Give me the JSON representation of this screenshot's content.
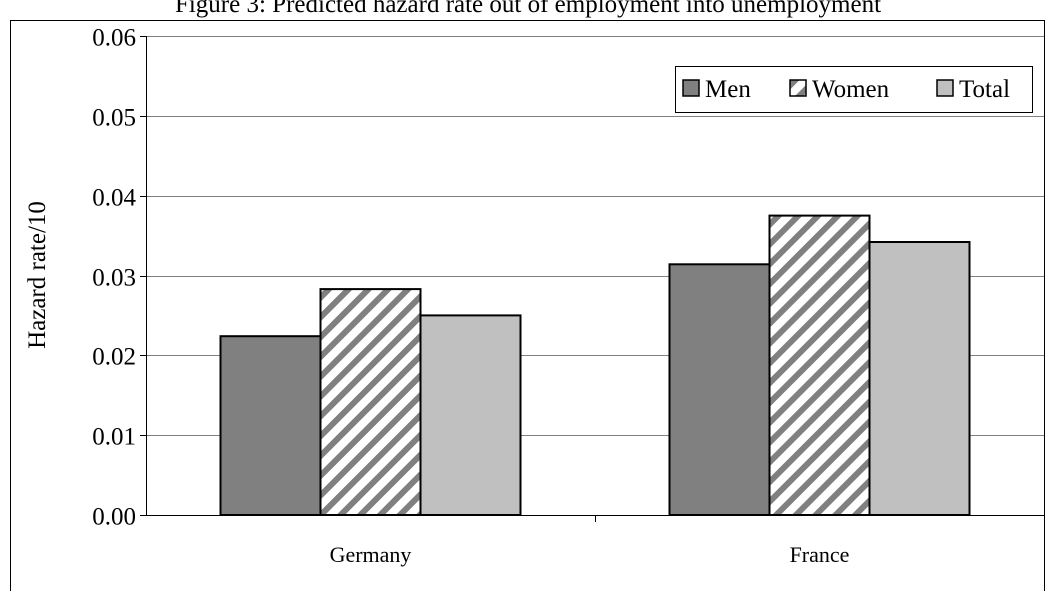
{
  "top_caption": "Figure 3: Predicted hazard rate out of employment into unemployment",
  "chart_data": {
    "type": "bar",
    "title": "",
    "xlabel": "",
    "ylabel": "Hazard rate/10",
    "ylim": [
      0,
      0.06
    ],
    "yticks": [
      "0.00",
      "0.01",
      "0.02",
      "0.03",
      "0.04",
      "0.05",
      "0.06"
    ],
    "grid": true,
    "legend_position": "top-right",
    "categories": [
      "Germany",
      "France"
    ],
    "series": [
      {
        "name": "Men",
        "values": [
          0.0224,
          0.0314
        ],
        "color": "#808080",
        "pattern": "solid"
      },
      {
        "name": "Women",
        "values": [
          0.0283,
          0.0375
        ],
        "color": "#ffffff",
        "pattern": "hatched"
      },
      {
        "name": "Total",
        "values": [
          0.025,
          0.0342
        ],
        "color": "#c0c0c0",
        "pattern": "solid"
      }
    ]
  }
}
